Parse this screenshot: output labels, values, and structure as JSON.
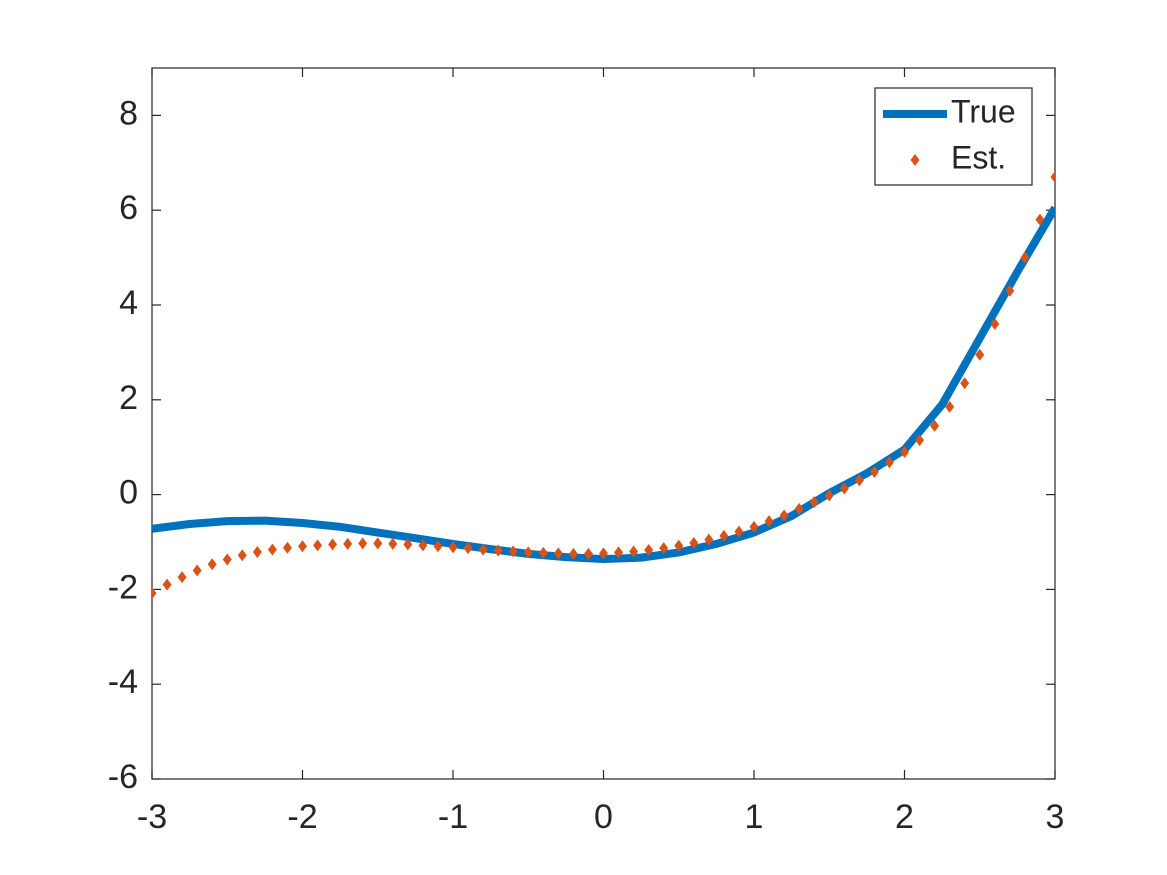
{
  "chart_data": {
    "type": "line",
    "xlim": [
      -3,
      3
    ],
    "ylim": [
      -6,
      9
    ],
    "xticks": [
      -3,
      -2,
      -1,
      0,
      1,
      2,
      3
    ],
    "yticks": [
      -6,
      -4,
      -2,
      0,
      2,
      4,
      6,
      8
    ],
    "grid": false,
    "legend": "top-right",
    "series": [
      {
        "name": "True",
        "color": "#0072BD",
        "style": "line",
        "x": [
          -3,
          -2.75,
          -2.5,
          -2.25,
          -2,
          -1.75,
          -1.5,
          -1.25,
          -1,
          -0.75,
          -0.5,
          -0.25,
          0,
          0.25,
          0.5,
          0.75,
          1,
          1.25,
          1.5,
          1.75,
          2,
          2.25,
          2.5,
          2.75,
          3
        ],
        "values": [
          -0.72,
          -0.62,
          -0.56,
          -0.55,
          -0.6,
          -0.68,
          -0.8,
          -0.92,
          -1.04,
          -1.15,
          -1.25,
          -1.32,
          -1.36,
          -1.33,
          -1.22,
          -1.04,
          -0.8,
          -0.45,
          0.03,
          0.45,
          0.95,
          1.9,
          3.3,
          4.7,
          6.05
        ]
      },
      {
        "name": "Est.",
        "color": "#D95319",
        "style": "diamond",
        "x": [
          -3,
          -2.9,
          -2.8,
          -2.7,
          -2.6,
          -2.5,
          -2.4,
          -2.3,
          -2.2,
          -2.1,
          -2,
          -1.9,
          -1.8,
          -1.7,
          -1.6,
          -1.5,
          -1.4,
          -1.3,
          -1.2,
          -1.1,
          -1,
          -0.9,
          -0.8,
          -0.7,
          -0.6,
          -0.5,
          -0.4,
          -0.3,
          -0.2,
          -0.1,
          0,
          0.1,
          0.2,
          0.3,
          0.4,
          0.5,
          0.6,
          0.7,
          0.8,
          0.9,
          1,
          1.1,
          1.2,
          1.3,
          1.4,
          1.5,
          1.6,
          1.7,
          1.8,
          1.9,
          2,
          2.1,
          2.2,
          2.3,
          2.4,
          2.5,
          2.6,
          2.7,
          2.8,
          2.9,
          3
        ],
        "values": [
          -2.08,
          -1.9,
          -1.74,
          -1.6,
          -1.47,
          -1.37,
          -1.28,
          -1.21,
          -1.16,
          -1.12,
          -1.09,
          -1.07,
          -1.05,
          -1.04,
          -1.03,
          -1.03,
          -1.04,
          -1.05,
          -1.07,
          -1.09,
          -1.11,
          -1.13,
          -1.16,
          -1.18,
          -1.2,
          -1.22,
          -1.23,
          -1.24,
          -1.25,
          -1.25,
          -1.24,
          -1.22,
          -1.2,
          -1.17,
          -1.13,
          -1.08,
          -1.02,
          -0.95,
          -0.87,
          -0.78,
          -0.68,
          -0.56,
          -0.44,
          -0.3,
          -0.16,
          -0.02,
          0.13,
          0.3,
          0.48,
          0.68,
          0.9,
          1.15,
          1.45,
          1.85,
          2.35,
          2.95,
          3.6,
          4.3,
          5.0,
          5.8,
          6.7
        ]
      }
    ]
  }
}
